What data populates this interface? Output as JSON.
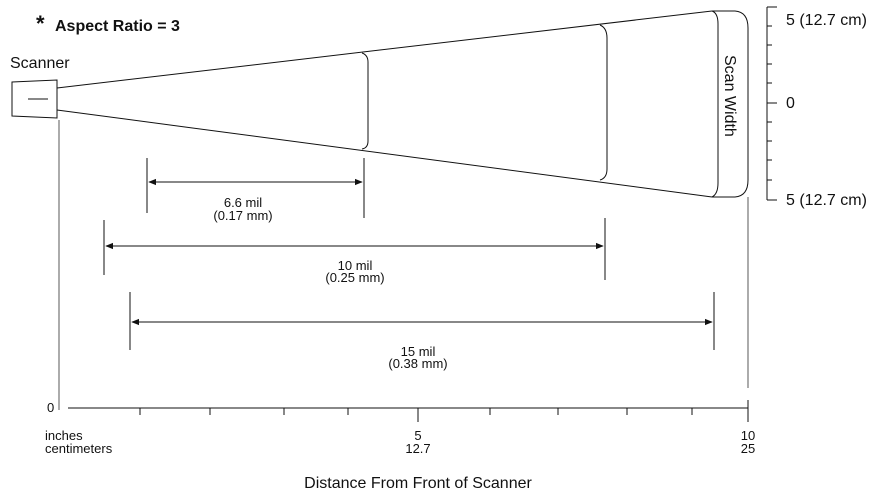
{
  "note": {
    "asterisk": "*",
    "text": "Aspect Ratio = 3"
  },
  "scanner_label": "Scanner",
  "scan_width": {
    "label": "Scan Width",
    "top": "5 (12.7 cm)",
    "middle": "0",
    "bottom": "5 (12.7 cm)"
  },
  "ranges": [
    {
      "mil": "6.6 mil",
      "mm": "(0.17 mm)"
    },
    {
      "mil": "10 mil",
      "mm": "(0.25 mm)"
    },
    {
      "mil": "15 mil",
      "mm": "(0.38 mm)"
    }
  ],
  "axis": {
    "origin": "0",
    "unit_inches": "inches",
    "unit_cm": "centimeters",
    "tick_mid_in": "5",
    "tick_mid_cm": "12.7",
    "tick_end_in": "10",
    "tick_end_cm": "25",
    "title": "Distance From Front of Scanner"
  }
}
